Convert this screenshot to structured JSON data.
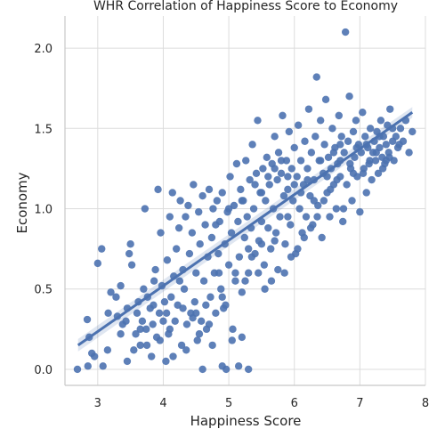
{
  "chart_data": {
    "type": "scatter",
    "title": "WHR Correlation of Happiness Score to Economy",
    "xlabel": "Happiness Score",
    "ylabel": "Economy",
    "xlim": [
      2.5,
      8.0
    ],
    "ylim": [
      -0.1,
      2.2
    ],
    "xticks": [
      "3",
      "4",
      "5",
      "6",
      "7",
      "8"
    ],
    "yticks": [
      "0.0",
      "0.5",
      "1.0",
      "1.5",
      "2.0"
    ],
    "grid": true,
    "legend": "none",
    "regression": {
      "x_start": 2.7,
      "x_end": 7.8,
      "y_start": 0.15,
      "y_end": 1.6
    },
    "series": [
      {
        "color": "#4c72b0",
        "points": [
          [
            2.69,
            0.0
          ],
          [
            2.84,
            0.31
          ],
          [
            2.85,
            0.02
          ],
          [
            2.87,
            0.2
          ],
          [
            2.91,
            0.1
          ],
          [
            3.0,
            0.66
          ],
          [
            3.06,
            0.75
          ],
          [
            3.08,
            0.02
          ],
          [
            3.16,
            0.35
          ],
          [
            3.2,
            0.48
          ],
          [
            3.28,
            0.45
          ],
          [
            3.3,
            0.33
          ],
          [
            3.35,
            0.52
          ],
          [
            3.38,
            0.28
          ],
          [
            3.43,
            0.3
          ],
          [
            3.45,
            0.38
          ],
          [
            3.48,
            0.72
          ],
          [
            3.5,
            0.78
          ],
          [
            3.52,
            0.65
          ],
          [
            3.55,
            0.12
          ],
          [
            3.58,
            0.22
          ],
          [
            3.6,
            0.35
          ],
          [
            3.62,
            0.42
          ],
          [
            3.65,
            0.15
          ],
          [
            3.68,
            0.3
          ],
          [
            3.7,
            0.5
          ],
          [
            3.72,
            1.0
          ],
          [
            3.74,
            0.25
          ],
          [
            3.76,
            0.45
          ],
          [
            3.8,
            0.38
          ],
          [
            3.82,
            0.08
          ],
          [
            3.84,
            0.28
          ],
          [
            3.86,
            0.55
          ],
          [
            3.88,
            0.62
          ],
          [
            3.9,
            0.2
          ],
          [
            3.92,
            1.12
          ],
          [
            3.94,
            0.35
          ],
          [
            3.96,
            0.85
          ],
          [
            3.98,
            0.52
          ],
          [
            4.0,
            0.3
          ],
          [
            4.02,
            0.42
          ],
          [
            4.04,
            0.05
          ],
          [
            4.06,
            0.68
          ],
          [
            4.08,
            0.22
          ],
          [
            4.1,
            0.95
          ],
          [
            4.12,
            0.45
          ],
          [
            4.14,
            1.1
          ],
          [
            4.16,
            0.58
          ],
          [
            4.18,
            0.3
          ],
          [
            4.2,
            0.75
          ],
          [
            4.22,
            0.4
          ],
          [
            4.24,
            0.88
          ],
          [
            4.26,
            1.05
          ],
          [
            4.28,
            0.15
          ],
          [
            4.3,
            0.62
          ],
          [
            4.32,
            0.5
          ],
          [
            4.34,
            0.95
          ],
          [
            4.36,
            0.28
          ],
          [
            4.38,
            1.02
          ],
          [
            4.4,
            0.72
          ],
          [
            4.42,
            0.35
          ],
          [
            4.44,
            0.85
          ],
          [
            4.46,
            1.15
          ],
          [
            4.48,
            0.42
          ],
          [
            4.5,
            0.6
          ],
          [
            4.52,
            0.18
          ],
          [
            4.54,
            0.98
          ],
          [
            4.56,
            0.78
          ],
          [
            4.58,
            0.3
          ],
          [
            4.6,
            1.08
          ],
          [
            4.62,
            0.55
          ],
          [
            4.64,
            0.9
          ],
          [
            4.66,
            0.25
          ],
          [
            4.68,
            0.7
          ],
          [
            4.7,
            1.12
          ],
          [
            4.72,
            0.45
          ],
          [
            4.74,
            0.82
          ],
          [
            4.76,
            1.0
          ],
          [
            4.78,
            0.6
          ],
          [
            4.8,
            0.35
          ],
          [
            4.82,
            1.05
          ],
          [
            4.84,
            0.72
          ],
          [
            4.86,
            0.92
          ],
          [
            4.88,
            0.5
          ],
          [
            4.9,
            1.1
          ],
          [
            4.92,
            0.38
          ],
          [
            4.94,
            0.78
          ],
          [
            4.96,
            0.0
          ],
          [
            4.98,
            0.98
          ],
          [
            5.0,
            0.65
          ],
          [
            5.02,
            1.2
          ],
          [
            5.04,
            0.85
          ],
          [
            5.06,
            0.25
          ],
          [
            5.08,
            1.02
          ],
          [
            5.1,
            0.55
          ],
          [
            5.12,
            1.28
          ],
          [
            5.14,
            0.92
          ],
          [
            5.16,
            0.7
          ],
          [
            5.18,
            1.12
          ],
          [
            5.2,
            0.48
          ],
          [
            5.22,
            1.05
          ],
          [
            5.24,
            0.82
          ],
          [
            5.26,
            1.3
          ],
          [
            5.28,
            0.95
          ],
          [
            5.3,
            0.6
          ],
          [
            5.32,
            1.18
          ],
          [
            5.34,
            0.88
          ],
          [
            5.36,
            1.4
          ],
          [
            5.38,
            1.0
          ],
          [
            5.4,
            0.72
          ],
          [
            5.42,
            1.22
          ],
          [
            5.44,
            1.55
          ],
          [
            5.46,
            0.8
          ],
          [
            5.48,
            1.1
          ],
          [
            5.5,
            0.92
          ],
          [
            5.52,
            1.25
          ],
          [
            5.54,
            0.65
          ],
          [
            5.56,
            1.05
          ],
          [
            5.58,
            1.32
          ],
          [
            5.6,
            0.88
          ],
          [
            5.62,
            1.15
          ],
          [
            5.64,
            0.75
          ],
          [
            5.66,
            1.28
          ],
          [
            5.68,
            1.0
          ],
          [
            5.7,
            1.45
          ],
          [
            5.72,
            0.85
          ],
          [
            5.74,
            1.18
          ],
          [
            5.76,
            1.35
          ],
          [
            5.78,
            0.95
          ],
          [
            5.8,
            1.22
          ],
          [
            5.82,
            1.58
          ],
          [
            5.84,
            1.08
          ],
          [
            5.86,
            0.78
          ],
          [
            5.88,
            1.3
          ],
          [
            5.9,
            1.12
          ],
          [
            5.92,
            1.48
          ],
          [
            5.94,
            0.9
          ],
          [
            5.96,
            1.25
          ],
          [
            5.98,
            1.05
          ],
          [
            6.0,
            1.38
          ],
          [
            6.02,
            0.72
          ],
          [
            6.04,
            1.2
          ],
          [
            6.06,
            1.52
          ],
          [
            6.08,
            1.0
          ],
          [
            6.1,
            1.3
          ],
          [
            6.12,
            0.85
          ],
          [
            6.14,
            1.15
          ],
          [
            6.16,
            1.42
          ],
          [
            6.18,
            0.95
          ],
          [
            6.2,
            1.25
          ],
          [
            6.22,
            1.62
          ],
          [
            6.24,
            1.08
          ],
          [
            6.26,
            1.35
          ],
          [
            6.28,
            0.9
          ],
          [
            6.3,
            1.18
          ],
          [
            6.32,
            1.45
          ],
          [
            6.34,
            1.82
          ],
          [
            6.36,
            1.02
          ],
          [
            6.38,
            1.3
          ],
          [
            6.4,
            1.55
          ],
          [
            6.42,
            0.82
          ],
          [
            6.44,
            1.22
          ],
          [
            6.46,
            1.4
          ],
          [
            6.48,
            1.68
          ],
          [
            6.5,
            1.1
          ],
          [
            6.52,
            1.32
          ],
          [
            6.54,
            0.95
          ],
          [
            6.56,
            1.25
          ],
          [
            6.58,
            1.5
          ],
          [
            6.6,
            1.15
          ],
          [
            6.62,
            1.38
          ],
          [
            6.64,
            1.0
          ],
          [
            6.66,
            1.28
          ],
          [
            6.68,
            1.58
          ],
          [
            6.7,
            1.2
          ],
          [
            6.72,
            1.45
          ],
          [
            6.74,
            0.92
          ],
          [
            6.76,
            1.35
          ],
          [
            6.78,
            2.1
          ],
          [
            6.8,
            1.15
          ],
          [
            6.82,
            1.42
          ],
          [
            6.84,
            1.7
          ],
          [
            6.86,
            1.25
          ],
          [
            6.88,
            1.05
          ],
          [
            6.9,
            1.48
          ],
          [
            6.92,
            1.32
          ],
          [
            6.94,
            1.55
          ],
          [
            6.96,
            1.2
          ],
          [
            6.98,
            1.4
          ],
          [
            7.0,
            0.98
          ],
          [
            7.02,
            1.35
          ],
          [
            7.04,
            1.6
          ],
          [
            7.06,
            1.25
          ],
          [
            7.08,
            1.45
          ],
          [
            7.1,
            1.1
          ],
          [
            7.12,
            1.38
          ],
          [
            7.14,
            1.28
          ],
          [
            7.16,
            1.5
          ],
          [
            7.18,
            1.18
          ],
          [
            7.2,
            1.35
          ],
          [
            7.22,
            1.42
          ],
          [
            7.24,
            1.3
          ],
          [
            7.26,
            1.48
          ],
          [
            7.28,
            1.22
          ],
          [
            7.3,
            1.38
          ],
          [
            7.32,
            1.55
          ],
          [
            7.34,
            1.32
          ],
          [
            7.36,
            1.45
          ],
          [
            7.38,
            1.28
          ],
          [
            7.4,
            1.4
          ],
          [
            7.42,
            1.52
          ],
          [
            7.44,
            1.35
          ],
          [
            7.46,
            1.62
          ],
          [
            7.5,
            1.42
          ],
          [
            7.52,
            1.3
          ],
          [
            7.55,
            1.45
          ],
          [
            7.58,
            1.38
          ],
          [
            7.62,
            1.5
          ],
          [
            7.66,
            1.42
          ],
          [
            7.7,
            1.55
          ],
          [
            7.75,
            1.35
          ],
          [
            7.8,
            1.48
          ],
          [
            3.75,
            0.15
          ],
          [
            4.05,
            0.35
          ],
          [
            4.15,
            0.08
          ],
          [
            4.25,
            0.55
          ],
          [
            4.35,
            0.12
          ],
          [
            4.45,
            0.32
          ],
          [
            4.55,
            0.22
          ],
          [
            4.65,
            0.4
          ],
          [
            4.75,
            0.15
          ],
          [
            4.85,
            0.6
          ],
          [
            4.95,
            0.4
          ],
          [
            5.05,
            0.18
          ],
          [
            5.15,
            0.02
          ],
          [
            5.25,
            0.55
          ],
          [
            5.35,
            0.7
          ],
          [
            5.45,
            0.6
          ],
          [
            5.55,
            0.5
          ],
          [
            5.65,
            0.55
          ],
          [
            5.75,
            0.62
          ],
          [
            5.85,
            0.6
          ],
          [
            5.95,
            0.7
          ],
          [
            6.05,
            0.75
          ],
          [
            6.15,
            0.82
          ],
          [
            6.25,
            0.88
          ],
          [
            6.35,
            0.95
          ],
          [
            6.45,
            1.05
          ],
          [
            6.55,
            1.12
          ],
          [
            6.65,
            1.18
          ],
          [
            6.75,
            1.0
          ],
          [
            6.85,
            1.28
          ],
          [
            6.95,
            1.38
          ],
          [
            7.05,
            1.22
          ],
          [
            7.15,
            1.3
          ],
          [
            7.25,
            1.35
          ],
          [
            7.35,
            1.25
          ],
          [
            7.45,
            1.32
          ],
          [
            4.1,
            0.25
          ],
          [
            4.3,
            0.38
          ],
          [
            4.5,
            0.35
          ],
          [
            4.7,
            0.28
          ],
          [
            4.9,
            0.45
          ],
          [
            5.1,
            0.6
          ],
          [
            5.3,
            0.75
          ],
          [
            5.5,
            0.78
          ],
          [
            5.7,
            0.8
          ],
          [
            5.9,
            0.95
          ],
          [
            6.1,
            1.1
          ],
          [
            6.3,
            1.05
          ],
          [
            6.5,
            1.2
          ],
          [
            6.7,
            1.3
          ],
          [
            6.9,
            1.22
          ],
          [
            7.1,
            1.4
          ],
          [
            7.3,
            1.45
          ],
          [
            7.5,
            1.5
          ],
          [
            5.6,
            1.2
          ],
          [
            5.7,
            1.25
          ],
          [
            5.8,
            1.3
          ],
          [
            5.9,
            1.2
          ],
          [
            6.0,
            1.15
          ],
          [
            5.4,
            1.15
          ],
          [
            5.5,
            1.1
          ],
          [
            5.2,
            1.05
          ],
          [
            5.0,
            1.0
          ],
          [
            4.8,
            0.9
          ],
          [
            6.6,
            1.35
          ],
          [
            6.7,
            1.4
          ],
          [
            6.2,
            1.18
          ],
          [
            6.4,
            1.3
          ],
          [
            7.4,
            1.3
          ],
          [
            7.6,
            1.4
          ],
          [
            2.95,
            0.08
          ],
          [
            3.15,
            0.12
          ],
          [
            3.35,
            0.22
          ],
          [
            3.45,
            0.05
          ],
          [
            3.65,
            0.25
          ],
          [
            3.85,
            0.4
          ],
          [
            3.95,
            0.18
          ],
          [
            4.6,
            0.0
          ],
          [
            4.9,
            0.02
          ],
          [
            5.2,
            0.2
          ],
          [
            5.3,
            0.0
          ]
        ]
      }
    ]
  }
}
